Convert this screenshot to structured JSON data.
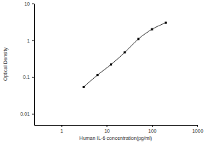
{
  "chart_data": {
    "type": "line",
    "x_label": "Human IL-6 concentration(pg/ml)",
    "y_label": "Optical Density",
    "x": [
      3.12,
      6.25,
      12.5,
      25,
      50,
      100,
      200
    ],
    "values": [
      0.054,
      0.114,
      0.22,
      0.47,
      1.09,
      2.0,
      3.0
    ],
    "color": "#000000",
    "marker": "square",
    "log": true,
    "xlim": [
      0.25,
      1000
    ],
    "xticks": [
      1,
      10,
      100,
      1000
    ],
    "ylim": [
      0.005,
      10
    ],
    "yticks": [
      0.01,
      0.1,
      1,
      10
    ],
    "grid": false
  }
}
